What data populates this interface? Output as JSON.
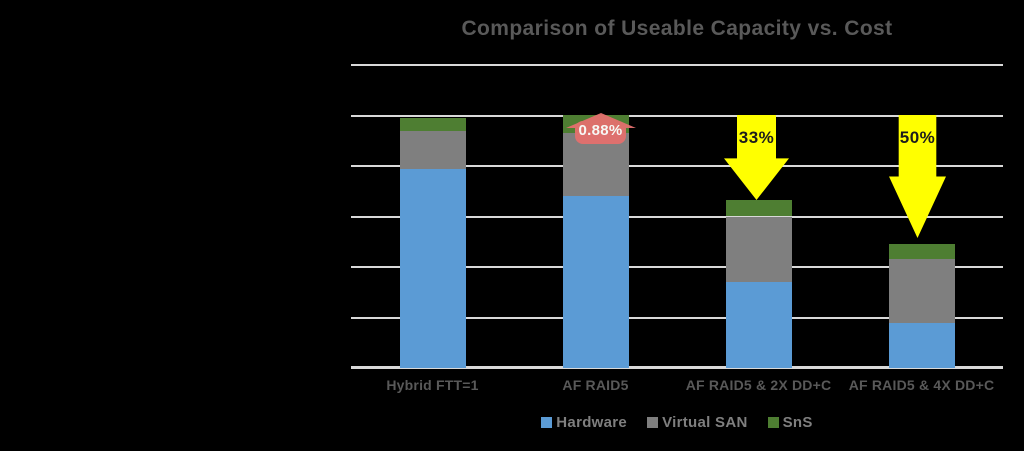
{
  "title": "Comparison of Useable Capacity vs. Cost",
  "colors": {
    "background": "#000000",
    "title_text": "#595959",
    "label_text": "#595959",
    "legend_text": "#7F7F7F",
    "gridline": "#D9D9D9",
    "hardware": "#5B9BD5",
    "virtual_san": "#7F7F7F",
    "sns": "#4E7E32",
    "arrow_yellow": "#FFFF00",
    "callout_red": "#E4706E"
  },
  "legend": {
    "position": "bottom",
    "items": [
      {
        "label": "Hardware",
        "color": "#5B9BD5"
      },
      {
        "label": "Virtual SAN",
        "color": "#7F7F7F"
      },
      {
        "label": "SnS",
        "color": "#4E7E32"
      }
    ]
  },
  "annotations": {
    "sns_increase": {
      "label": "0.88%",
      "shape": "red-up-arrow-callout",
      "target_category": "AF RAID5"
    },
    "cost_reduction_2x": {
      "label": "33%",
      "shape": "yellow-down-arrow",
      "target_category": "AF RAID5 & 2X DD+C"
    },
    "cost_reduction_4x": {
      "label": "50%",
      "shape": "yellow-down-arrow",
      "target_category": "AF RAID5 & 4X DD+C"
    }
  },
  "chart_data": {
    "type": "bar",
    "stacked": true,
    "title": "Comparison of Useable Capacity vs. Cost",
    "categories": [
      "Hybrid FTT=1",
      "AF RAID5",
      "AF RAID5 & 2X DD+C",
      "AF RAID5 & 4X DD+C"
    ],
    "series": [
      {
        "name": "Hardware",
        "color": "#5B9BD5",
        "values": [
          3.95,
          3.4,
          1.7,
          0.9
        ]
      },
      {
        "name": "Virtual SAN",
        "color": "#7F7F7F",
        "values": [
          0.75,
          1.25,
          1.3,
          1.25
        ]
      },
      {
        "name": "SnS",
        "color": "#4E7E32",
        "values": [
          0.25,
          0.36,
          0.33,
          0.3
        ]
      }
    ],
    "totals": [
      4.95,
      5.01,
      3.33,
      2.45
    ],
    "xlabel": "",
    "ylabel": "",
    "ylim": [
      0,
      6
    ],
    "gridline_interval": 1,
    "y_tick_labels_visible": false,
    "grid": "horizontal",
    "legend_position": "bottom",
    "annotations": [
      {
        "text": "0.88%",
        "category": "AF RAID5",
        "style": "red up-arrow callout at top of bar"
      },
      {
        "text": "33%",
        "category": "AF RAID5 & 2X DD+C",
        "style": "yellow down arrow from gridline 5 to top of bar"
      },
      {
        "text": "50%",
        "category": "AF RAID5 & 4X DD+C",
        "style": "yellow down arrow from gridline 5 to top of bar"
      }
    ]
  }
}
